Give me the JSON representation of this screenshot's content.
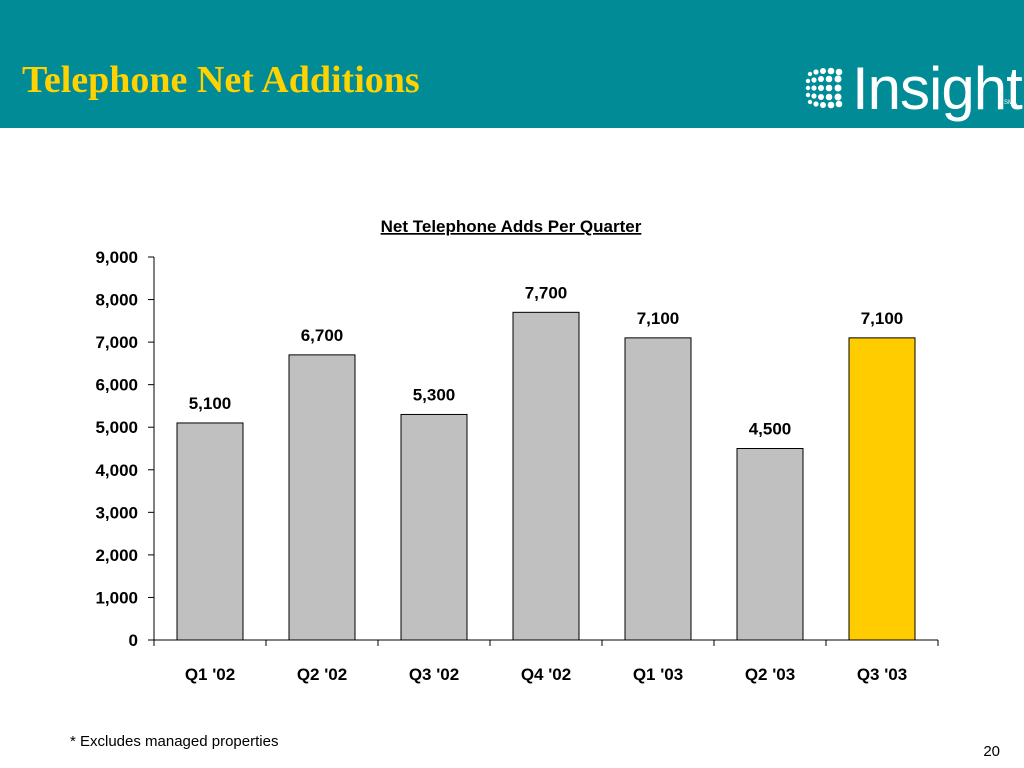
{
  "slide": {
    "title": "Telephone Net Additions",
    "logo_text": "Insight",
    "logo_mark": "SM",
    "footnote": "* Excludes managed properties",
    "page_number": "20"
  },
  "colors": {
    "header": "#008B96",
    "title": "#FFD200",
    "bar": "#C0C0C0",
    "bar_highlight": "#FFCC00",
    "bar_outline": "#000000"
  },
  "chart_data": {
    "type": "bar",
    "title": "Net Telephone Adds Per Quarter",
    "xlabel": "",
    "ylabel": "",
    "categories": [
      "Q1 '02",
      "Q2 '02",
      "Q3 '02",
      "Q4 '02",
      "Q1 '03",
      "Q2 '03",
      "Q3 '03"
    ],
    "values": [
      5100,
      6700,
      5300,
      7700,
      7100,
      4500,
      7100
    ],
    "value_labels": [
      "5,100",
      "6,700",
      "5,300",
      "7,700",
      "7,100",
      "4,500",
      "7,100"
    ],
    "highlight_index": 6,
    "ylim": [
      0,
      9000
    ],
    "yticks": [
      0,
      1000,
      2000,
      3000,
      4000,
      5000,
      6000,
      7000,
      8000,
      9000
    ],
    "ytick_labels": [
      "0",
      "1,000",
      "2,000",
      "3,000",
      "4,000",
      "5,000",
      "6,000",
      "7,000",
      "8,000",
      "9,000"
    ],
    "grid": false,
    "legend": "none"
  }
}
